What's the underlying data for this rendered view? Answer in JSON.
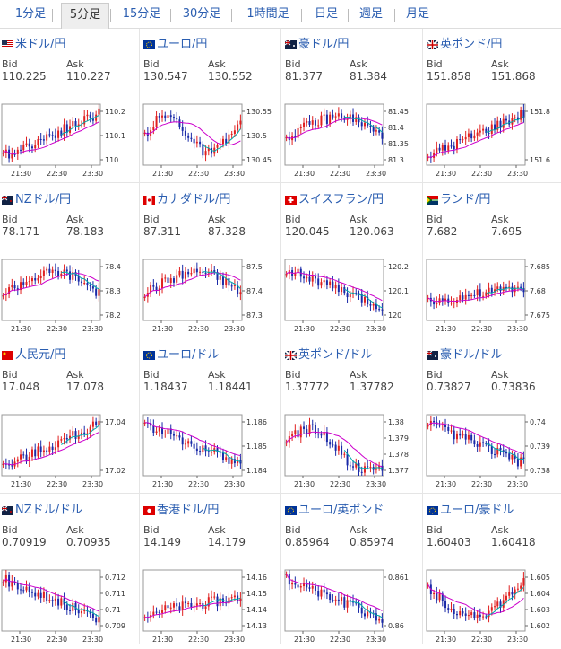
{
  "tabs": [
    {
      "label": "1分足",
      "active": false
    },
    {
      "label": "5分足",
      "active": true
    },
    {
      "label": "15分足",
      "active": false
    },
    {
      "label": "30分足",
      "active": false
    },
    {
      "label": "1時間足",
      "active": false
    },
    {
      "label": "日足",
      "active": false
    },
    {
      "label": "週足",
      "active": false
    },
    {
      "label": "月足",
      "active": false
    }
  ],
  "labels": {
    "bid": "Bid",
    "ask": "Ask"
  },
  "colors": {
    "link": "#2a5db0",
    "up": "#e02020",
    "down": "#1a2aa8",
    "ma_magenta": "#cc00cc",
    "ma_cyan": "#00aaaa"
  },
  "pairs": [
    {
      "name": "米ドル/円",
      "bid": "110.225",
      "ask": "110.227",
      "flag": "us-flag-icon",
      "yticks": [
        "110.2",
        "110.1",
        "110"
      ],
      "xticks": [
        "21:30",
        "22:30",
        "23:30"
      ],
      "trend": "up"
    },
    {
      "name": "ユーロ/円",
      "bid": "130.547",
      "ask": "130.552",
      "flag": "eu-flag-icon",
      "yticks": [
        "130.55",
        "130.5",
        "130.45"
      ],
      "xticks": [
        "21:30",
        "22:30",
        "23:30"
      ],
      "trend": "choppy"
    },
    {
      "name": "豪ドル/円",
      "bid": "81.377",
      "ask": "81.384",
      "flag": "au-flag-icon",
      "yticks": [
        "81.45",
        "81.4",
        "81.35",
        "81.3"
      ],
      "xticks": [
        "21:30",
        "22:30",
        "23:30"
      ],
      "trend": "humpdown"
    },
    {
      "name": "英ポンド/円",
      "bid": "151.858",
      "ask": "151.868",
      "flag": "gb-flag-icon",
      "yticks": [
        "151.8",
        "151.6"
      ],
      "xticks": [
        "21:30",
        "22:30",
        "23:30"
      ],
      "trend": "up"
    },
    {
      "name": "NZドル/円",
      "bid": "78.171",
      "ask": "78.183",
      "flag": "nz-flag-icon",
      "yticks": [
        "78.4",
        "78.3",
        "78.2"
      ],
      "xticks": [
        "21:30",
        "22:30",
        "23:30"
      ],
      "trend": "humpdown"
    },
    {
      "name": "カナダドル/円",
      "bid": "87.311",
      "ask": "87.328",
      "flag": "ca-flag-icon",
      "yticks": [
        "87.5",
        "87.4",
        "87.3"
      ],
      "xticks": [
        "21:30",
        "22:30",
        "23:30"
      ],
      "trend": "humpdown"
    },
    {
      "name": "スイスフラン/円",
      "bid": "120.045",
      "ask": "120.063",
      "flag": "ch-flag-icon",
      "yticks": [
        "120.2",
        "120.1",
        "120"
      ],
      "xticks": [
        "21:30",
        "22:30",
        "23:30"
      ],
      "trend": "down"
    },
    {
      "name": "ランド/円",
      "bid": "7.682",
      "ask": "7.695",
      "flag": "za-flag-icon",
      "yticks": [
        "7.685",
        "7.68",
        "7.675"
      ],
      "xticks": [
        "21:30",
        "22:30",
        "23:30"
      ],
      "trend": "spiky"
    },
    {
      "name": "人民元/円",
      "bid": "17.048",
      "ask": "17.078",
      "flag": "cn-flag-icon",
      "yticks": [
        "17.04",
        "17.02"
      ],
      "xticks": [
        "21:30",
        "22:30",
        "23:30"
      ],
      "trend": "up"
    },
    {
      "name": "ユーロ/ドル",
      "bid": "1.18437",
      "ask": "1.18441",
      "flag": "eu-flag-icon",
      "yticks": [
        "1.186",
        "1.185",
        "1.184"
      ],
      "xticks": [
        "21:30",
        "22:30",
        "23:30"
      ],
      "trend": "down"
    },
    {
      "name": "英ポンド/ドル",
      "bid": "1.37772",
      "ask": "1.37782",
      "flag": "gb-flag-icon",
      "yticks": [
        "1.38",
        "1.379",
        "1.378",
        "1.377"
      ],
      "xticks": [
        "21:30",
        "22:30",
        "23:30"
      ],
      "trend": "vdown"
    },
    {
      "name": "豪ドル/ドル",
      "bid": "0.73827",
      "ask": "0.73836",
      "flag": "au-flag-icon",
      "yticks": [
        "0.74",
        "0.739",
        "0.738"
      ],
      "xticks": [
        "21:30",
        "22:30",
        "23:30"
      ],
      "trend": "down"
    },
    {
      "name": "NZドル/ドル",
      "bid": "0.70919",
      "ask": "0.70935",
      "flag": "nz-flag-icon",
      "yticks": [
        "0.712",
        "0.711",
        "0.71",
        "0.709"
      ],
      "xticks": [
        "21:30",
        "22:30",
        "23:30"
      ],
      "trend": "down"
    },
    {
      "name": "香港ドル/円",
      "bid": "14.149",
      "ask": "14.179",
      "flag": "hk-flag-icon",
      "yticks": [
        "14.16",
        "14.15",
        "14.14",
        "14.13"
      ],
      "xticks": [
        "21:30",
        "22:30",
        "23:30"
      ],
      "trend": "spiky"
    },
    {
      "name": "ユーロ/英ポンド",
      "bid": "0.85964",
      "ask": "0.85974",
      "flag": "eu-flag-icon",
      "yticks": [
        "0.861",
        "0.86"
      ],
      "xticks": [
        "21:30",
        "22:30",
        "23:30"
      ],
      "trend": "down"
    },
    {
      "name": "ユーロ/豪ドル",
      "bid": "1.60403",
      "ask": "1.60418",
      "flag": "eu-flag-icon",
      "yticks": [
        "1.605",
        "1.604",
        "1.603",
        "1.602"
      ],
      "xticks": [
        "21:30",
        "22:30",
        "23:30"
      ],
      "trend": "vup"
    }
  ]
}
